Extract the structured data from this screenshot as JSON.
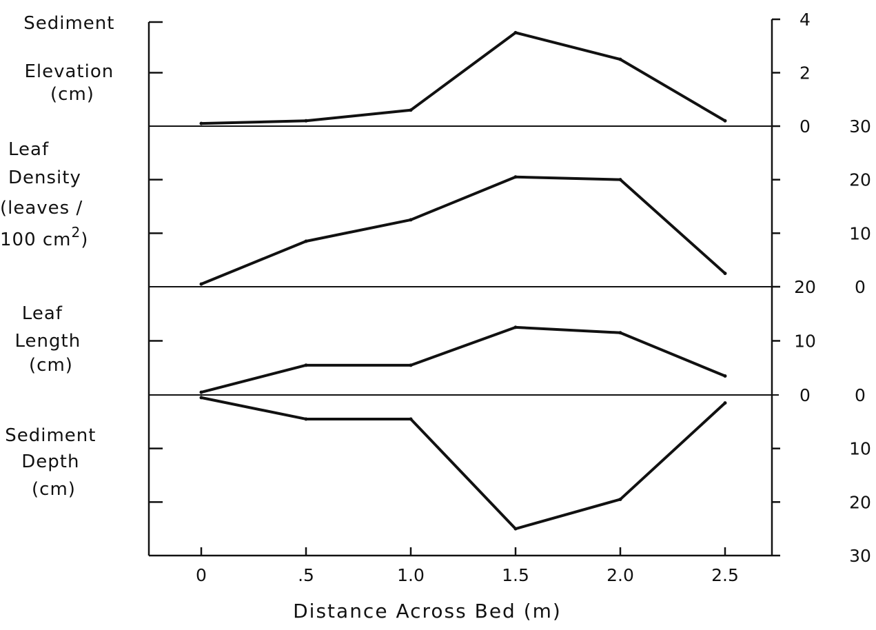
{
  "chart_data": {
    "type": "line",
    "xlabel": "Distance Across Bed (m)",
    "x": [
      0,
      0.5,
      1.0,
      1.5,
      2.0,
      2.5
    ],
    "x_tick_labels": [
      "0",
      ".5",
      "1.0",
      "1.5",
      "2.0",
      "2.5"
    ],
    "xlim": [
      -0.25,
      2.75
    ],
    "grid": false,
    "legend": "none",
    "panels": [
      {
        "key": "elevation",
        "label_lines": [
          "Sediment",
          "Elevation",
          "(cm)"
        ],
        "ylim": [
          0,
          4
        ],
        "tick_values": [
          0,
          2,
          4
        ],
        "tick_labels": [
          "0",
          "2",
          "4"
        ],
        "values": [
          0.1,
          0.2,
          0.6,
          3.5,
          2.5,
          0.2
        ]
      },
      {
        "key": "density",
        "label_lines": [
          "Leaf",
          "Density",
          "(leaves /",
          "100 cm",
          "2",
          ")"
        ],
        "ylim": [
          0,
          30
        ],
        "tick_values": [
          0,
          10,
          20,
          30
        ],
        "tick_labels": [
          "0",
          "10",
          "20",
          "30"
        ],
        "values": [
          0.5,
          8.5,
          12.5,
          20.5,
          20.0,
          2.5
        ]
      },
      {
        "key": "length",
        "label_lines": [
          "Leaf",
          "Length",
          "(cm)"
        ],
        "ylim": [
          0,
          20
        ],
        "tick_values": [
          0,
          10,
          20
        ],
        "tick_labels": [
          "0",
          "10",
          "20"
        ],
        "values": [
          0.5,
          5.5,
          5.5,
          12.5,
          11.5,
          3.5
        ]
      },
      {
        "key": "depth",
        "label_lines": [
          "Sediment",
          "Depth",
          "(cm)"
        ],
        "ylim": [
          0,
          30
        ],
        "inverted": true,
        "tick_values": [
          0,
          10,
          20,
          30
        ],
        "tick_labels": [
          "0",
          "10",
          "20",
          "30"
        ],
        "values": [
          0.5,
          4.5,
          4.5,
          25.0,
          19.5,
          1.5
        ]
      }
    ]
  }
}
